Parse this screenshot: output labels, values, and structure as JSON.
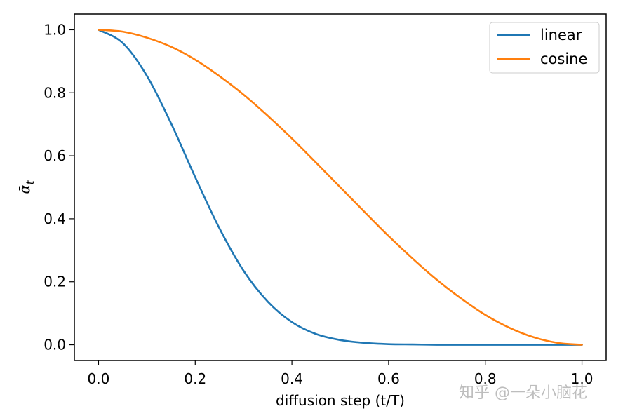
{
  "chart_data": {
    "type": "line",
    "xlabel": "diffusion step (t/T)",
    "ylabel": "ᾱ",
    "ylabel_subscript": "t",
    "xlim": [
      -0.05,
      1.05
    ],
    "ylim": [
      -0.05,
      1.05
    ],
    "xticks": [
      "0.0",
      "0.2",
      "0.4",
      "0.6",
      "0.8",
      "1.0"
    ],
    "yticks": [
      "0.0",
      "0.2",
      "0.4",
      "0.6",
      "0.8",
      "1.0"
    ],
    "grid": false,
    "legend_position": "top-right",
    "x": [
      0.0,
      0.05,
      0.1,
      0.15,
      0.2,
      0.25,
      0.3,
      0.35,
      0.4,
      0.45,
      0.5,
      0.55,
      0.6,
      0.65,
      0.7,
      0.75,
      0.8,
      0.85,
      0.9,
      0.95,
      1.0
    ],
    "series": [
      {
        "name": "linear",
        "color": "#1f77b4",
        "values": [
          1.0,
          0.958,
          0.854,
          0.703,
          0.532,
          0.37,
          0.235,
          0.137,
          0.072,
          0.034,
          0.015,
          0.006,
          0.002,
          0.001,
          0.0,
          0.0,
          0.0,
          0.0,
          0.0,
          0.0,
          0.0
        ]
      },
      {
        "name": "cosine",
        "color": "#ff7f0e",
        "values": [
          1.0,
          0.994,
          0.975,
          0.946,
          0.905,
          0.853,
          0.794,
          0.727,
          0.655,
          0.578,
          0.5,
          0.422,
          0.345,
          0.273,
          0.206,
          0.147,
          0.095,
          0.054,
          0.024,
          0.006,
          0.0
        ]
      }
    ]
  },
  "watermark": "知乎 @一朵小脑花"
}
